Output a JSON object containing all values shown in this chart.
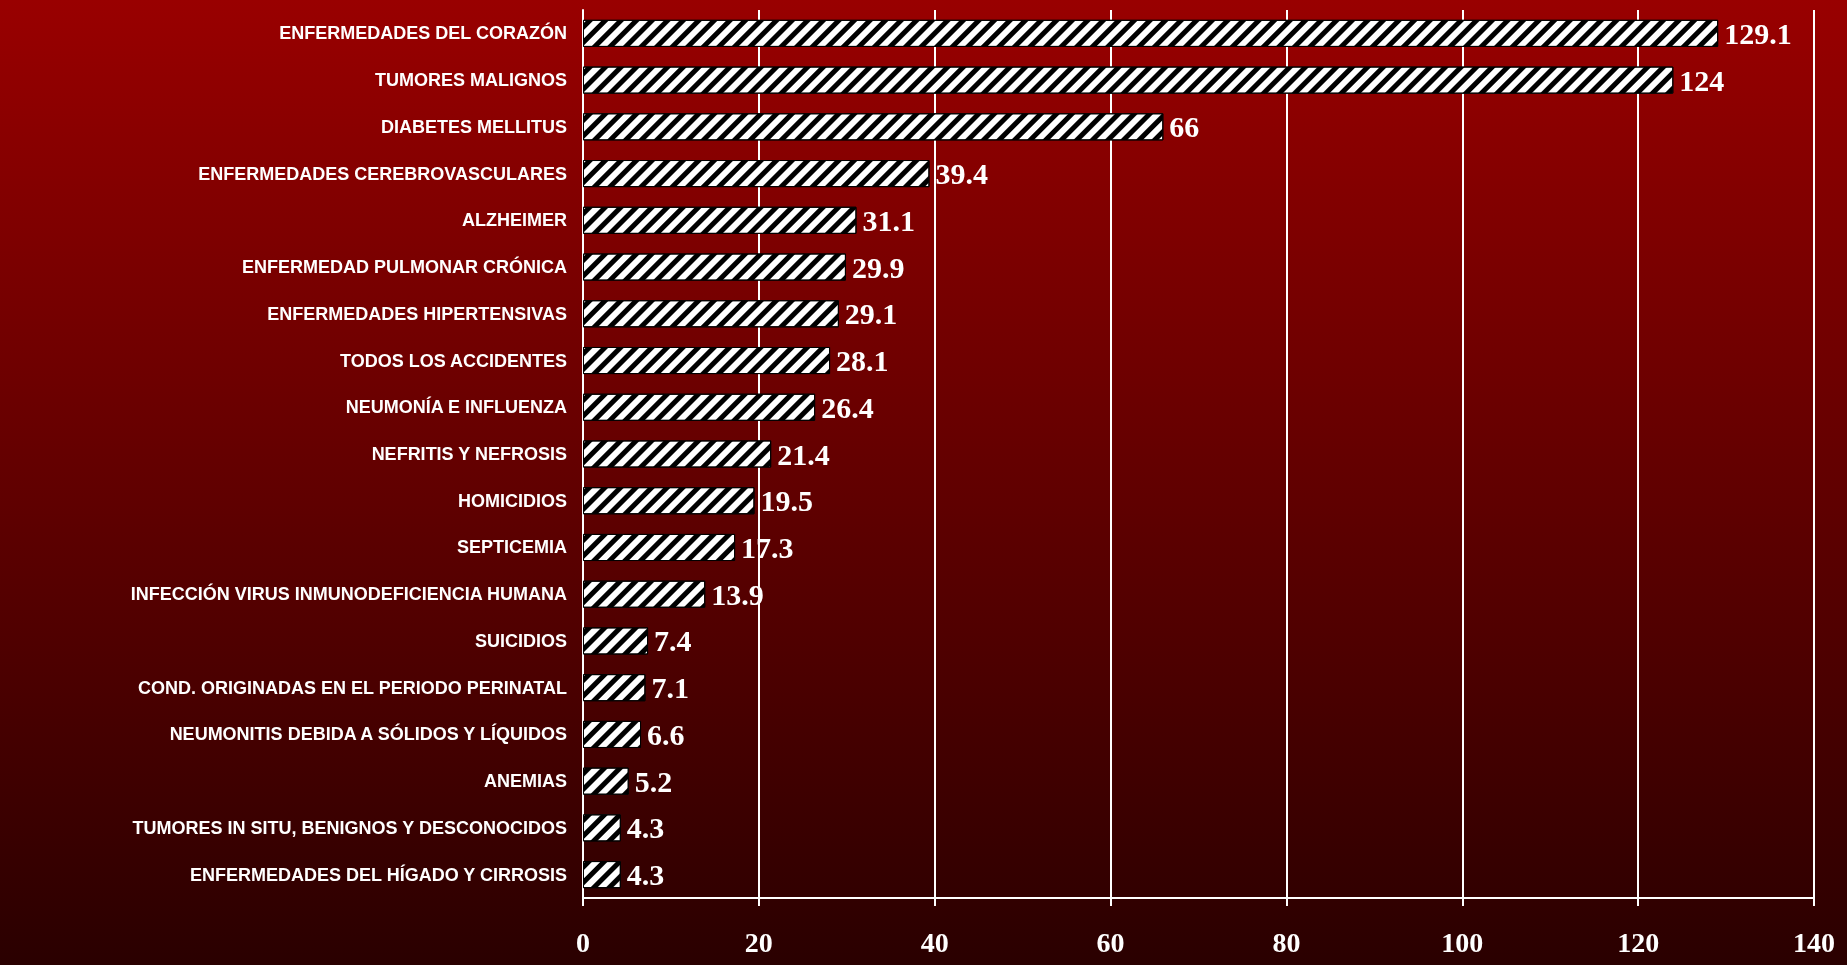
{
  "chart_data": {
    "type": "bar",
    "orientation": "horizontal",
    "categories": [
      "ENFERMEDADES DEL CORAZÓN",
      "TUMORES MALIGNOS",
      "DIABETES MELLITUS",
      "ENFERMEDADES CEREBROVASCULARES",
      "ALZHEIMER",
      "ENFERMEDAD PULMONAR CRÓNICA",
      "ENFERMEDADES HIPERTENSIVAS",
      "TODOS LOS ACCIDENTES",
      "NEUMONÍA E INFLUENZA",
      "NEFRITIS Y NEFROSIS",
      "HOMICIDIOS",
      "SEPTICEMIA",
      "INFECCIÓN VIRUS INMUNODEFICIENCIA HUMANA",
      "SUICIDIOS",
      "COND. ORIGINADAS EN EL PERIODO PERINATAL",
      "NEUMONITIS DEBIDA A SÓLIDOS Y LÍQUIDOS",
      "ANEMIAS",
      "TUMORES IN SITU, BENIGNOS Y DESCONOCIDOS",
      "ENFERMEDADES DEL HÍGADO Y CIRROSIS"
    ],
    "values": [
      129.1,
      124,
      66,
      39.4,
      31.1,
      29.9,
      29.1,
      28.1,
      26.4,
      21.4,
      19.5,
      17.3,
      13.9,
      7.4,
      7.1,
      6.6,
      5.2,
      4.3,
      4.3
    ],
    "color": "#ffffff",
    "xlim": [
      0,
      140
    ],
    "xticks": [
      0,
      20,
      40,
      60,
      80,
      100,
      120,
      140
    ],
    "grid": "x",
    "data_labels": true
  }
}
